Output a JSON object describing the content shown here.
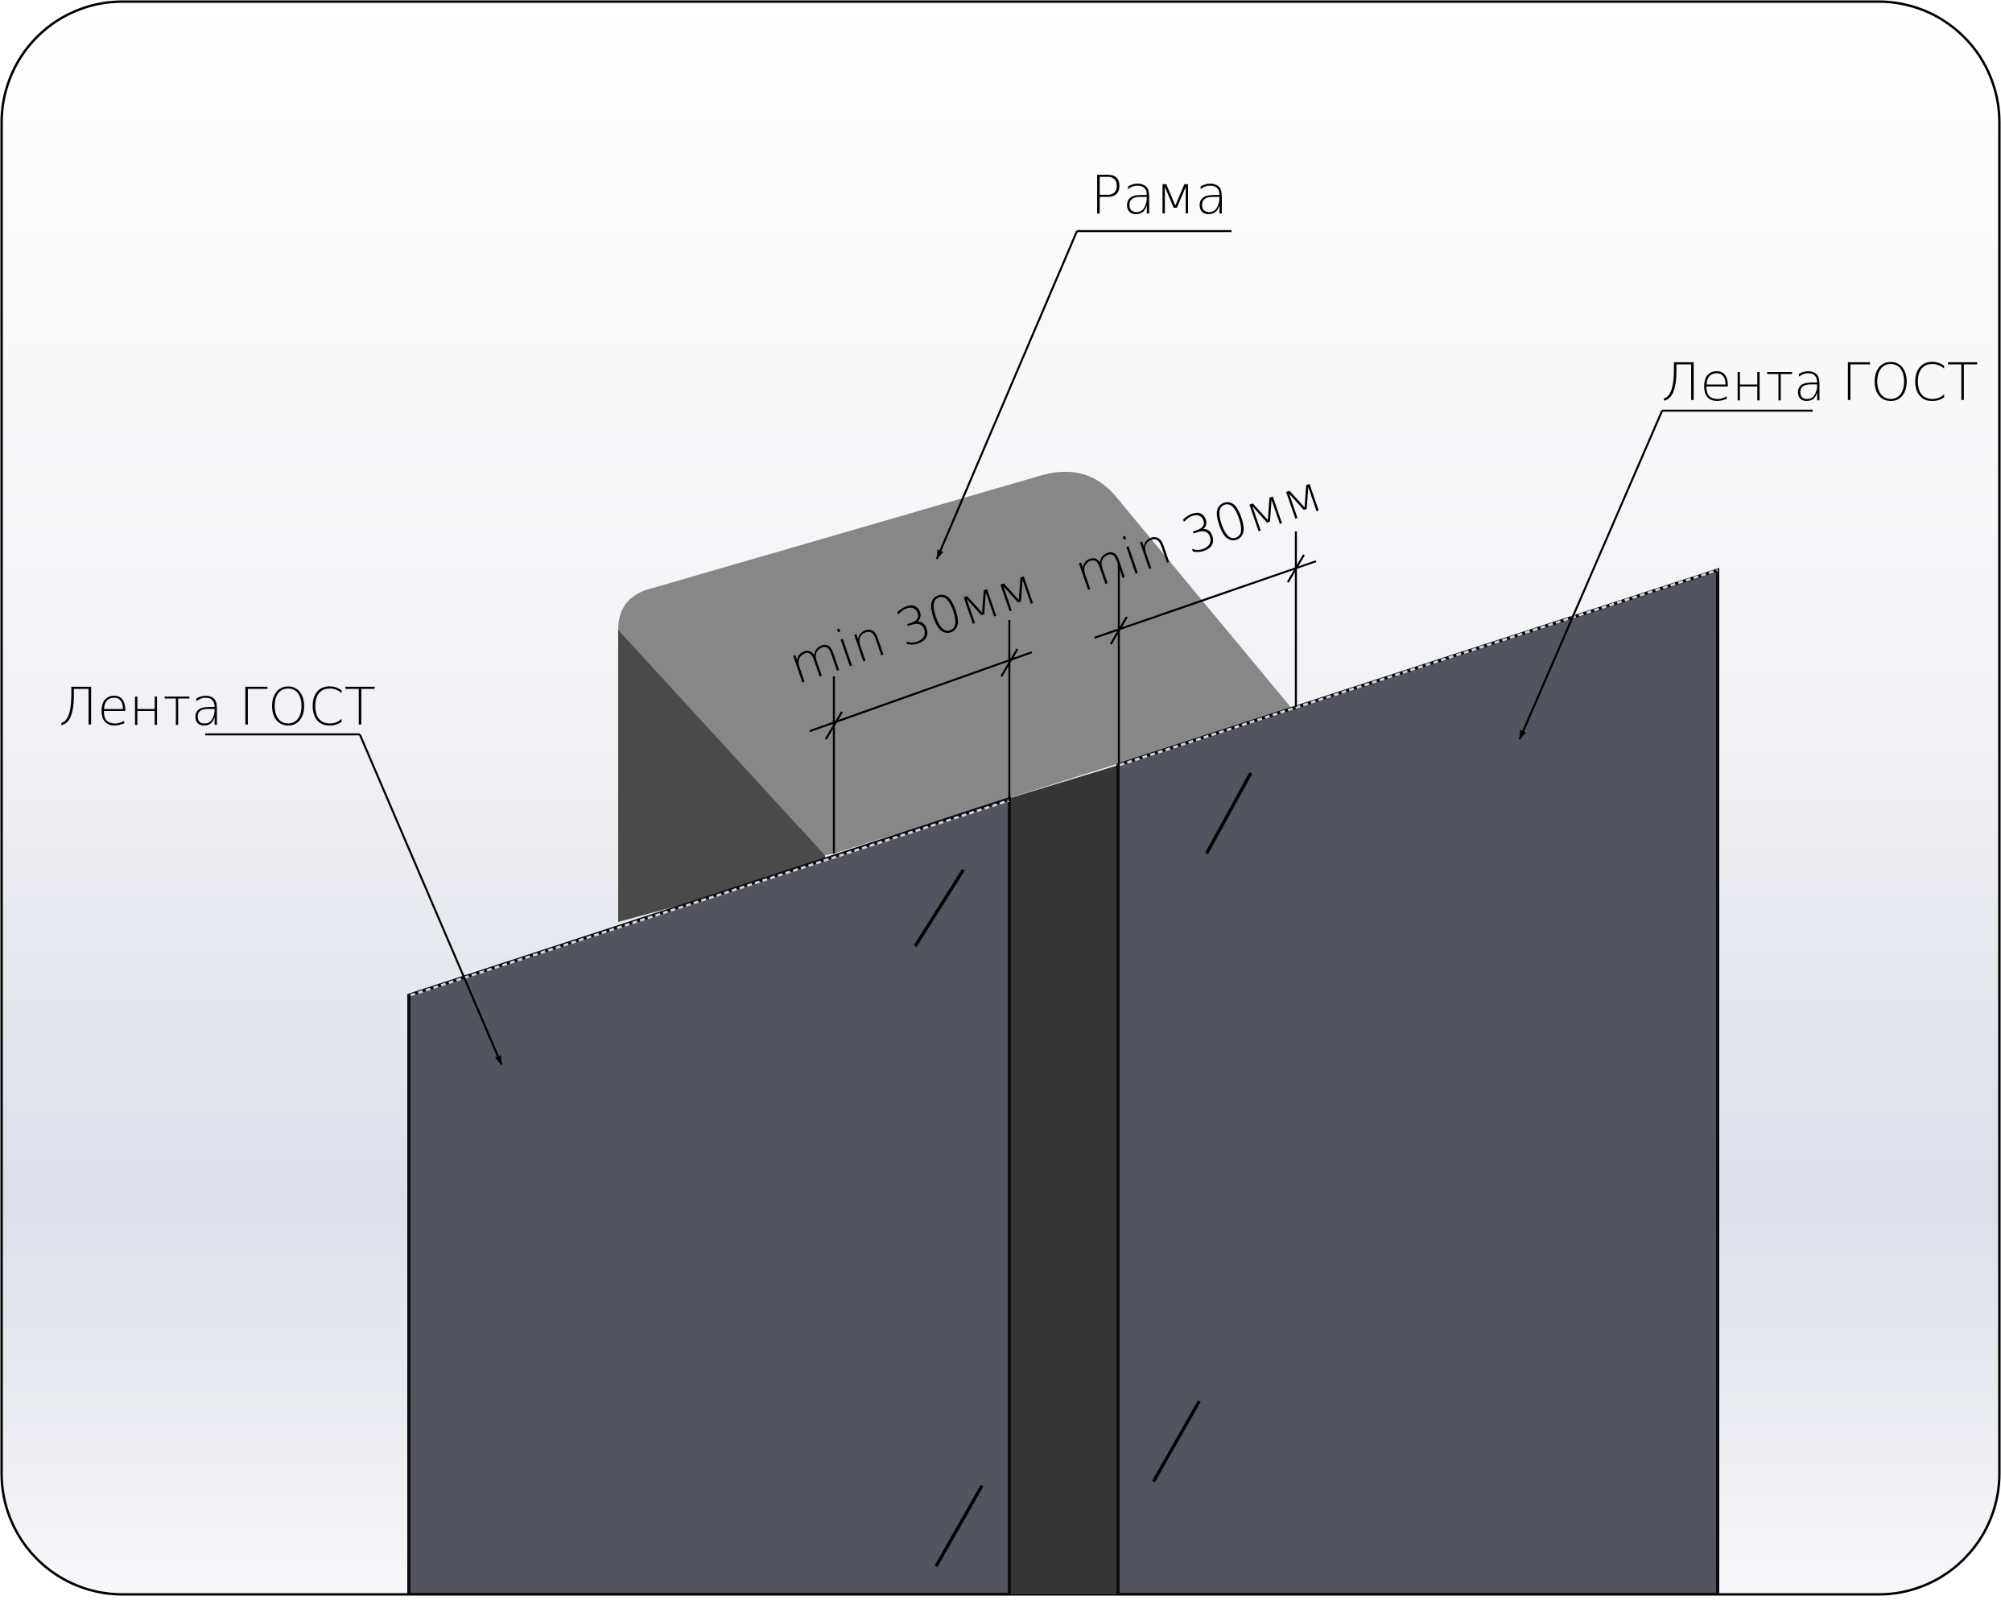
{
  "labels": {
    "frame": "Рама",
    "tape_left": "Лента ГОСТ",
    "tape_right": "Лента ГОСТ",
    "dim_left": "min 30мм",
    "dim_right": "min 30мм"
  },
  "colors": {
    "background_top": "#ffffff",
    "background_bottom": "#dcdfea",
    "frame_top_face": "#878787",
    "frame_side_face": "#4a4a4a",
    "tape_panel": "#52545f",
    "joint_gap": "#353535",
    "line": "#000000"
  }
}
